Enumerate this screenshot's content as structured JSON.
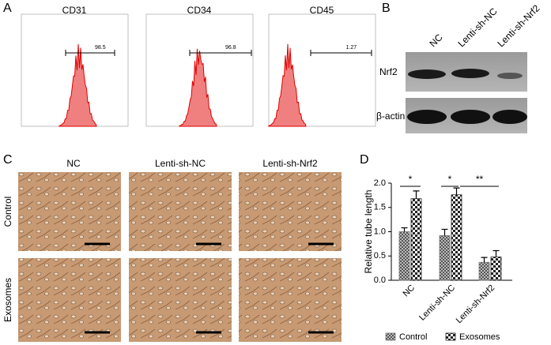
{
  "panels": [
    "A",
    "B",
    "C",
    "D"
  ],
  "flow": [
    {
      "title": "CD31",
      "gate": 98.5
    },
    {
      "title": "CD34",
      "gate": 96.8
    },
    {
      "title": "CD45",
      "gate": 1.27
    }
  ],
  "blot": {
    "lanes": [
      "NC",
      "Lenti-sh-NC",
      "Lenti-sh-Nrf2"
    ],
    "rows": [
      "Nrf2",
      "β-actin"
    ]
  },
  "micrographs": {
    "columns": [
      "NC",
      "Lenti-sh-NC",
      "Lenti-sh-Nrf2"
    ],
    "rows": [
      "Control",
      "Exosomes"
    ]
  },
  "chart_data": {
    "type": "bar",
    "ylabel": "Relative tube length",
    "categories": [
      "NC",
      "Lenti-sh-NC",
      "Lenti-sh-Nrf2"
    ],
    "series": [
      {
        "name": "Control",
        "color": "#777777",
        "values": [
          1.0,
          0.92,
          0.37
        ],
        "errors": [
          0.08,
          0.13,
          0.1
        ]
      },
      {
        "name": "Exosomes",
        "color": "#222222",
        "values": [
          1.68,
          1.76,
          0.48
        ],
        "errors": [
          0.16,
          0.14,
          0.13
        ]
      }
    ],
    "ylim": [
      0,
      2.0
    ],
    "yticks": [
      {
        "value": 0,
        "label": "0.0"
      },
      {
        "value": 0.5,
        "label": "0.5"
      },
      {
        "value": 1.0,
        "label": "1.0"
      },
      {
        "value": 1.5,
        "label": "1.5"
      },
      {
        "value": 2.0,
        "label": "2.0"
      }
    ],
    "annotations": [
      "*",
      "*",
      "**"
    ]
  }
}
